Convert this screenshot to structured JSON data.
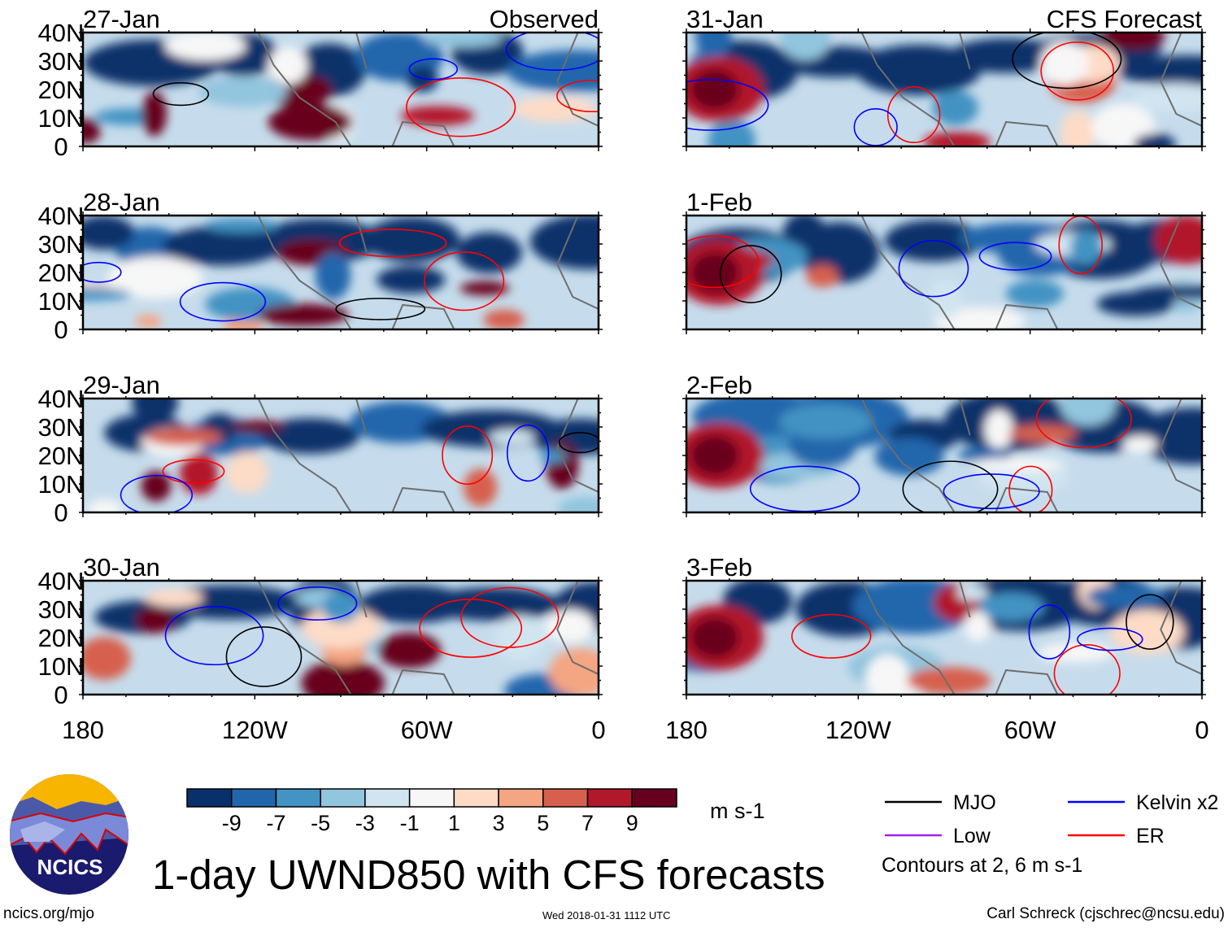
{
  "panels": [
    {
      "date": "27-Jan",
      "tag": "Observed",
      "column": "left"
    },
    {
      "date": "28-Jan",
      "tag": "",
      "column": "left"
    },
    {
      "date": "29-Jan",
      "tag": "",
      "column": "left"
    },
    {
      "date": "30-Jan",
      "tag": "",
      "column": "left"
    },
    {
      "date": "31-Jan",
      "tag": "CFS Forecast",
      "column": "right"
    },
    {
      "date": "1-Feb",
      "tag": "",
      "column": "right"
    },
    {
      "date": "2-Feb",
      "tag": "",
      "column": "right"
    },
    {
      "date": "3-Feb",
      "tag": "",
      "column": "right"
    }
  ],
  "lat_ticks": [
    "40N",
    "30N",
    "20N",
    "10N",
    "0"
  ],
  "lon_ticks": [
    "180",
    "120W",
    "60W",
    "0"
  ],
  "colorbar": {
    "colors": [
      "#08306b",
      "#2166ac",
      "#4393c3",
      "#92c5de",
      "#d1e5f0",
      "#f7f7f7",
      "#fddbc7",
      "#f4a582",
      "#d6604d",
      "#b2182b",
      "#67001f"
    ],
    "labels": [
      "-9",
      "-7",
      "-5",
      "-3",
      "-1",
      "1",
      "3",
      "5",
      "7",
      "9"
    ],
    "units": "m s-1"
  },
  "legend": {
    "items": [
      {
        "label": "MJO",
        "color": "#000000"
      },
      {
        "label": "Kelvin x2",
        "color": "#0000ff"
      },
      {
        "label": "Low",
        "color": "#a020f0"
      },
      {
        "label": "ER",
        "color": "#ff0000"
      }
    ],
    "note": "Contours at 2, 6 m s-1"
  },
  "title": "1-day UWND850 with CFS forecasts",
  "logo_text": "NCICS",
  "footer": {
    "left": "ncics.org/mjo",
    "center": "Wed 2018-01-31 1112 UTC",
    "right": "Carl Schreck (cjschrec@ncsu.edu)"
  }
}
